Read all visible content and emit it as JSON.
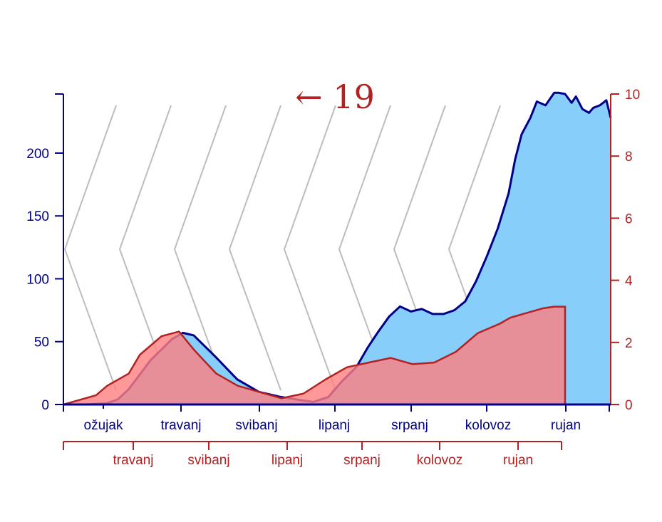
{
  "chart_data": {
    "type": "area",
    "annotation": "← 19",
    "colors": {
      "primary_line": "#00008b",
      "primary_fill": "#87cefa",
      "secondary_line": "#b22222",
      "secondary_fill": "#ff8080",
      "chevrons": "#bdbdbd"
    },
    "y_left": {
      "ticks": [
        0,
        50,
        100,
        150,
        200
      ],
      "range": [
        0,
        247
      ],
      "tick_labels": [
        "0",
        "50",
        "100",
        "150",
        "200"
      ]
    },
    "y_right": {
      "ticks": [
        0,
        2,
        4,
        6,
        8,
        10
      ],
      "range": [
        0,
        10
      ],
      "tick_labels": [
        "0",
        "2",
        "4",
        "6",
        "8",
        "10"
      ]
    },
    "x_primary": {
      "range_days": [
        0,
        252
      ],
      "month_labels": [
        "ožujak",
        "travanj",
        "svibanj",
        "lipanj",
        "srpanj",
        "kolovoz",
        "rujan"
      ]
    },
    "x_secondary": {
      "range_days": [
        0,
        230
      ],
      "month_labels": [
        "travanj",
        "svibanj",
        "lipanj",
        "srpanj",
        "kolovoz",
        "rujan"
      ]
    },
    "series": [
      {
        "axis": "left",
        "x": [
          0,
          10,
          20,
          25,
          30,
          40,
          50,
          55,
          60,
          70,
          80,
          90,
          100,
          115,
          122,
          128,
          135,
          140,
          145,
          150,
          155,
          160,
          165,
          170,
          175,
          180,
          185,
          190,
          195,
          200,
          205,
          208,
          211,
          215,
          218,
          222,
          226,
          228,
          231,
          234,
          236,
          239,
          242,
          244,
          247,
          250,
          252
        ],
        "values": [
          0,
          0,
          1,
          4,
          12,
          35,
          52,
          57,
          55,
          38,
          20,
          10,
          6,
          2,
          6,
          18,
          30,
          45,
          58,
          70,
          78,
          74,
          76,
          72,
          72,
          75,
          82,
          98,
          118,
          140,
          168,
          195,
          215,
          228,
          241,
          238,
          248,
          248,
          247,
          240,
          245,
          235,
          232,
          236,
          238,
          242,
          228
        ]
      },
      {
        "axis": "right",
        "x": [
          0,
          10,
          15,
          20,
          30,
          35,
          45,
          53,
          60,
          70,
          80,
          90,
          100,
          110,
          120,
          130,
          140,
          150,
          160,
          170,
          180,
          190,
          200,
          205,
          210,
          215,
          220,
          225,
          230
        ],
        "values": [
          0,
          0.2,
          0.3,
          0.6,
          1.0,
          1.6,
          2.2,
          2.35,
          1.75,
          1.0,
          0.6,
          0.4,
          0.2,
          0.35,
          0.8,
          1.2,
          1.35,
          1.5,
          1.3,
          1.35,
          1.7,
          2.3,
          2.6,
          2.8,
          2.9,
          3.0,
          3.1,
          3.15,
          3.15
        ]
      }
    ]
  }
}
